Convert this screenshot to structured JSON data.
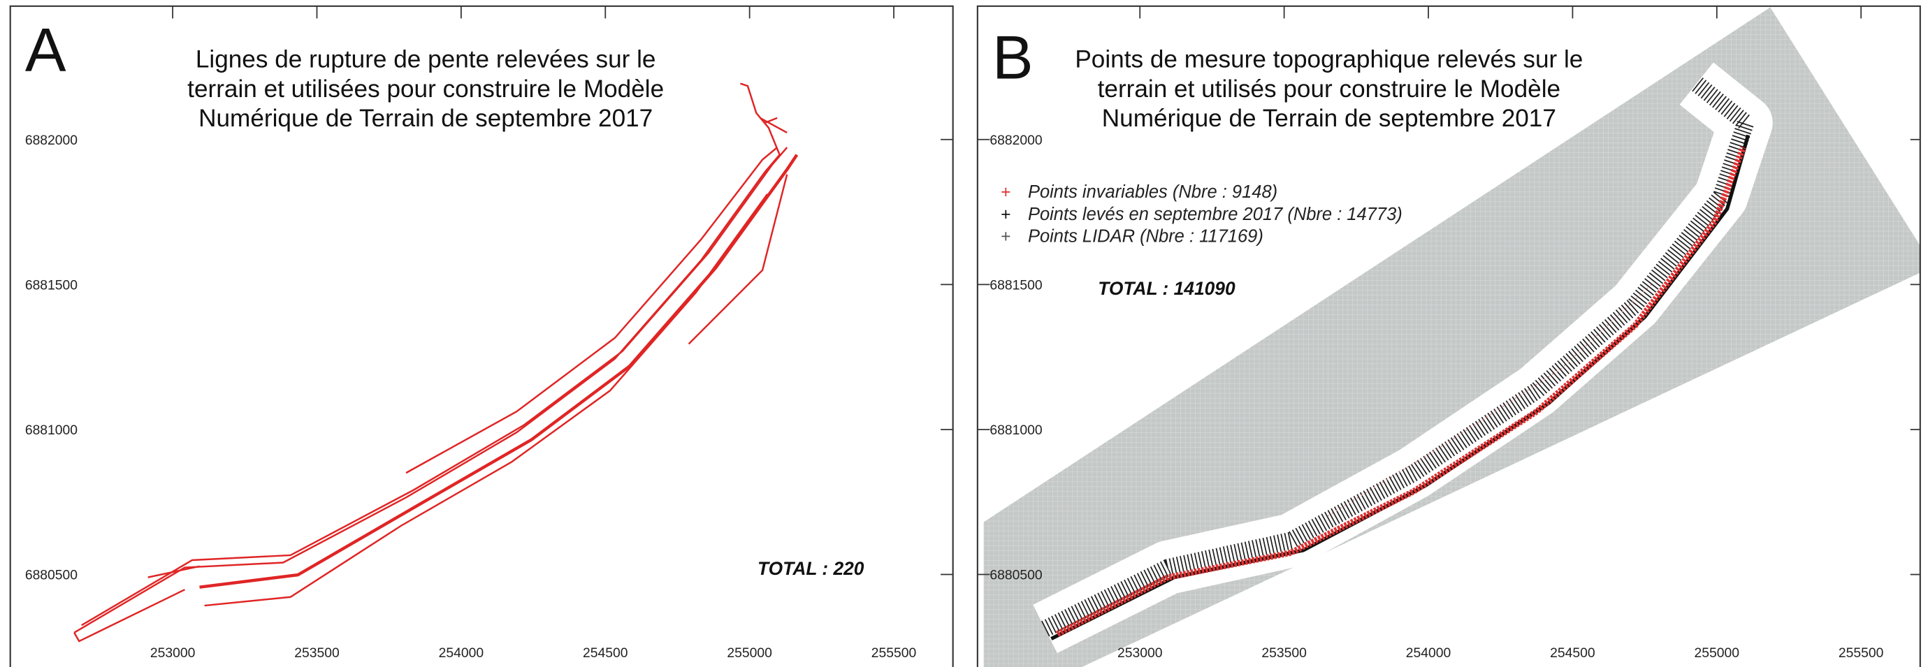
{
  "panels": [
    {
      "letter": "A",
      "title": [
        "Lignes de rupture de pente relevées sur le",
        "terrain et utilisées pour construire le Modèle",
        "Numérique de Terrain de septembre 2017"
      ],
      "total": "TOTAL : 220",
      "xlim": [
        252437,
        255705
      ],
      "ylim": [
        6880181,
        6882460
      ],
      "xticks": [
        253000,
        253500,
        254000,
        254500,
        255000,
        255500
      ],
      "yticks": [
        6880500,
        6881000,
        6881500,
        6882000
      ]
    },
    {
      "letter": "B",
      "title": [
        "Points de mesure topographique relevés sur le",
        "terrain et utilisés pour construire le Modèle",
        "Numérique de Terrain de septembre 2017"
      ],
      "legend": [
        {
          "label": "Points invariables (Nbre : 9148)",
          "color": "#e03030"
        },
        {
          "label": "Points levés en septembre 2017 (Nbre : 14773)",
          "color": "#111111"
        },
        {
          "label": "Points LIDAR (Nbre : 117169)",
          "color": "#555555"
        }
      ],
      "total": "TOTAL : 141090",
      "xlim": [
        252437,
        255705
      ],
      "ylim": [
        6880181,
        6882460
      ],
      "xticks": [
        253000,
        253500,
        254000,
        254500,
        255000,
        255500
      ],
      "yticks": [
        6880500,
        6881000,
        6881500,
        6882000
      ]
    }
  ]
}
